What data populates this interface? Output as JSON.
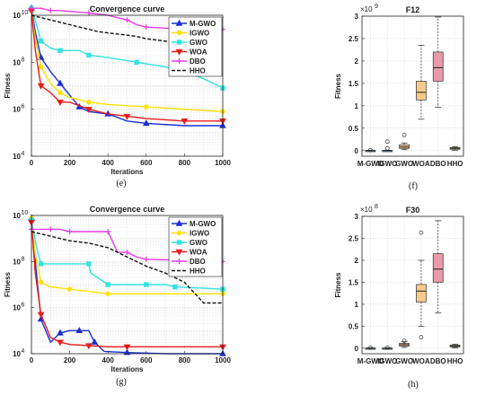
{
  "chart_data": [
    {
      "type": "line",
      "title": "Convergence curve",
      "xlabel": "Iterations",
      "ylabel": "Fitness",
      "xlim": [
        0,
        1000
      ],
      "ylim_exp": [
        4,
        10
      ],
      "ylabel_base": "10",
      "yscale": "log",
      "grid": "on",
      "legend_placement": "top-right",
      "x_ticks": [
        "0",
        "200",
        "400",
        "600",
        "800",
        "1000"
      ],
      "y_tick_exponents": [
        "4",
        "6",
        "8",
        "10"
      ],
      "caption": "(e)",
      "series": [
        {
          "name": "M-GWO",
          "color": "#1a2fd6",
          "marker": "triangle",
          "points": [
            [
              0,
              10.3
            ],
            [
              20,
              9.3
            ],
            [
              50,
              8.2
            ],
            [
              100,
              7.6
            ],
            [
              150,
              7.1
            ],
            [
              200,
              6.6
            ],
            [
              250,
              6.1
            ],
            [
              300,
              5.9
            ],
            [
              400,
              5.8
            ],
            [
              500,
              5.5
            ],
            [
              600,
              5.4
            ],
            [
              800,
              5.3
            ],
            [
              1000,
              5.3
            ]
          ]
        },
        {
          "name": "IGWO",
          "color": "#ffe000",
          "marker": "circle",
          "points": [
            [
              0,
              10.2
            ],
            [
              20,
              9.0
            ],
            [
              50,
              7.8
            ],
            [
              100,
              7.1
            ],
            [
              150,
              6.7
            ],
            [
              200,
              6.5
            ],
            [
              300,
              6.3
            ],
            [
              400,
              6.2
            ],
            [
              600,
              6.1
            ],
            [
              800,
              6.0
            ],
            [
              1000,
              5.9
            ]
          ]
        },
        {
          "name": "GWO",
          "color": "#33e3e3",
          "marker": "square",
          "points": [
            [
              0,
              10.3
            ],
            [
              30,
              9.5
            ],
            [
              50,
              8.9
            ],
            [
              100,
              8.6
            ],
            [
              150,
              8.5
            ],
            [
              250,
              8.5
            ],
            [
              300,
              8.3
            ],
            [
              400,
              8.2
            ],
            [
              550,
              8.0
            ],
            [
              700,
              7.8
            ],
            [
              800,
              7.6
            ],
            [
              900,
              7.3
            ],
            [
              1000,
              6.9
            ]
          ]
        },
        {
          "name": "WOA",
          "color": "#e81c1c",
          "marker": "triangle-down",
          "points": [
            [
              0,
              10.2
            ],
            [
              20,
              8.5
            ],
            [
              50,
              7.0
            ],
            [
              100,
              6.7
            ],
            [
              150,
              6.3
            ],
            [
              200,
              6.3
            ],
            [
              300,
              6.0
            ],
            [
              400,
              5.8
            ],
            [
              500,
              5.7
            ],
            [
              600,
              5.6
            ],
            [
              800,
              5.5
            ],
            [
              1000,
              5.5
            ]
          ]
        },
        {
          "name": "DBO",
          "color": "#e53be5",
          "marker": "plus",
          "points": [
            [
              0,
              10.3
            ],
            [
              50,
              10.3
            ],
            [
              100,
              10.2
            ],
            [
              150,
              10.2
            ],
            [
              300,
              10.1
            ],
            [
              400,
              10.0
            ],
            [
              500,
              9.8
            ],
            [
              550,
              9.6
            ],
            [
              600,
              9.5
            ],
            [
              800,
              9.4
            ],
            [
              900,
              9.4
            ],
            [
              1000,
              9.4
            ]
          ]
        },
        {
          "name": "HHO",
          "color": "#111111",
          "marker": "none",
          "dashed": true,
          "points": [
            [
              0,
              10.0
            ],
            [
              100,
              9.8
            ],
            [
              200,
              9.6
            ],
            [
              300,
              9.4
            ],
            [
              350,
              9.3
            ],
            [
              450,
              9.2
            ],
            [
              500,
              9.15
            ],
            [
              550,
              9.1
            ],
            [
              600,
              9.0
            ],
            [
              700,
              8.9
            ],
            [
              800,
              8.8
            ],
            [
              900,
              8.75
            ],
            [
              1000,
              8.7
            ]
          ]
        }
      ]
    },
    {
      "type": "box",
      "title": "F12",
      "ylabel": "Fitness",
      "exponent_label": "×10",
      "exponent": "9",
      "ylim": [
        0,
        3
      ],
      "y_ticks": [
        "0",
        "0.5",
        "1",
        "1.5",
        "2",
        "2.5",
        "3"
      ],
      "caption": "(f)",
      "categories": [
        "M-GWO",
        "IGWO",
        "GWO",
        "WOA",
        "DBO",
        "HHO"
      ],
      "boxes": [
        {
          "min": 0,
          "q1": 0,
          "median": 0,
          "q3": 0.005,
          "max": 0.01,
          "outliers": [
            0.01
          ],
          "color": "#7fb3d9"
        },
        {
          "min": 0,
          "q1": 0,
          "median": 0,
          "q3": 0.005,
          "max": 0.01,
          "outliers": [
            0.05,
            0.2
          ],
          "color": "#7fb3d9"
        },
        {
          "min": 0.02,
          "q1": 0.05,
          "median": 0.08,
          "q3": 0.13,
          "max": 0.17,
          "outliers": [
            0.35
          ],
          "color": "#f2b98a"
        },
        {
          "min": 0.7,
          "q1": 1.13,
          "median": 1.3,
          "q3": 1.55,
          "max": 2.35,
          "outliers": [],
          "color": "#f6c98c"
        },
        {
          "min": 0.97,
          "q1": 1.55,
          "median": 1.85,
          "q3": 2.2,
          "max": 2.98,
          "outliers": [],
          "color": "#e99aa8"
        },
        {
          "min": 0.01,
          "q1": 0.03,
          "median": 0.05,
          "q3": 0.07,
          "max": 0.09,
          "outliers": [],
          "color": "#e8d98a"
        }
      ]
    },
    {
      "type": "line",
      "title": "Convergence curve",
      "xlabel": "Iterations",
      "ylabel": "Fitness",
      "xlim": [
        0,
        1000
      ],
      "ylim_exp": [
        4,
        10
      ],
      "ylabel_base": "10",
      "yscale": "log",
      "grid": "on",
      "legend_placement": "top-right",
      "x_ticks": [
        "0",
        "200",
        "400",
        "600",
        "800",
        "1000"
      ],
      "y_tick_exponents": [
        "4",
        "6",
        "8",
        "10"
      ],
      "caption": "(g)",
      "series": [
        {
          "name": "M-GWO",
          "color": "#1a2fd6",
          "marker": "triangle",
          "points": [
            [
              0,
              9.9
            ],
            [
              20,
              8.0
            ],
            [
              50,
              5.5
            ],
            [
              100,
              4.5
            ],
            [
              150,
              4.9
            ],
            [
              200,
              5.0
            ],
            [
              250,
              5.0
            ],
            [
              300,
              5.0
            ],
            [
              330,
              4.5
            ],
            [
              380,
              4.1
            ],
            [
              500,
              4.05
            ],
            [
              700,
              4.0
            ],
            [
              1000,
              4.0
            ]
          ]
        },
        {
          "name": "IGWO",
          "color": "#ffe000",
          "marker": "circle",
          "points": [
            [
              0,
              9.9
            ],
            [
              20,
              8.3
            ],
            [
              50,
              7.1
            ],
            [
              100,
              6.9
            ],
            [
              200,
              6.8
            ],
            [
              300,
              6.7
            ],
            [
              400,
              6.6
            ],
            [
              600,
              6.6
            ],
            [
              1000,
              6.6
            ]
          ]
        },
        {
          "name": "GWO",
          "color": "#33e3e3",
          "marker": "square",
          "points": [
            [
              0,
              9.8
            ],
            [
              30,
              8.5
            ],
            [
              50,
              7.9
            ],
            [
              100,
              7.9
            ],
            [
              300,
              7.9
            ],
            [
              310,
              7.5
            ],
            [
              400,
              7.0
            ],
            [
              500,
              7.0
            ],
            [
              600,
              7.0
            ],
            [
              700,
              7.0
            ],
            [
              750,
              6.9
            ],
            [
              1000,
              6.8
            ]
          ]
        },
        {
          "name": "WOA",
          "color": "#e81c1c",
          "marker": "triangle-down",
          "points": [
            [
              0,
              9.7
            ],
            [
              20,
              7.5
            ],
            [
              50,
              5.7
            ],
            [
              100,
              4.7
            ],
            [
              150,
              4.5
            ],
            [
              200,
              4.4
            ],
            [
              300,
              4.35
            ],
            [
              400,
              4.3
            ],
            [
              500,
              4.3
            ],
            [
              700,
              4.3
            ],
            [
              1000,
              4.3
            ]
          ]
        },
        {
          "name": "DBO",
          "color": "#e53be5",
          "marker": "plus",
          "points": [
            [
              0,
              9.4
            ],
            [
              50,
              9.4
            ],
            [
              100,
              9.4
            ],
            [
              150,
              9.4
            ],
            [
              200,
              9.3
            ],
            [
              300,
              9.3
            ],
            [
              400,
              9.3
            ],
            [
              450,
              8.4
            ],
            [
              500,
              8.4
            ],
            [
              550,
              8.2
            ],
            [
              600,
              8.1
            ],
            [
              800,
              8.05
            ],
            [
              1000,
              8.0
            ]
          ]
        },
        {
          "name": "HHO",
          "color": "#111111",
          "marker": "none",
          "dashed": true,
          "points": [
            [
              0,
              9.3
            ],
            [
              100,
              9.1
            ],
            [
              200,
              8.9
            ],
            [
              300,
              8.8
            ],
            [
              400,
              8.6
            ],
            [
              500,
              8.2
            ],
            [
              600,
              7.8
            ],
            [
              700,
              7.5
            ],
            [
              800,
              7.1
            ],
            [
              900,
              6.2
            ],
            [
              1000,
              6.2
            ]
          ]
        }
      ]
    },
    {
      "type": "box",
      "title": "F30",
      "ylabel": "Fitness",
      "exponent_label": "×10",
      "exponent": "8",
      "ylim": [
        0,
        3
      ],
      "y_ticks": [
        "0",
        "0.5",
        "1",
        "1.5",
        "2",
        "2.5",
        "3"
      ],
      "caption": "(h)",
      "categories": [
        "M-GWO",
        "IGWO",
        "GWO",
        "WOA",
        "DBO",
        "HHO"
      ],
      "boxes": [
        {
          "min": 0,
          "q1": 0,
          "median": 0,
          "q3": 0.005,
          "max": 0.01,
          "outliers": [
            0.01
          ],
          "color": "#7fb3d9"
        },
        {
          "min": 0,
          "q1": 0,
          "median": 0,
          "q3": 0.005,
          "max": 0.01,
          "outliers": [
            0.01
          ],
          "color": "#7fb3d9"
        },
        {
          "min": 0.02,
          "q1": 0.05,
          "median": 0.08,
          "q3": 0.11,
          "max": 0.15,
          "outliers": [
            0.17
          ],
          "color": "#f2b98a"
        },
        {
          "min": 0.5,
          "q1": 1.05,
          "median": 1.3,
          "q3": 1.45,
          "max": 2.0,
          "outliers": [
            2.63,
            0.25
          ],
          "color": "#f6c98c"
        },
        {
          "min": 0.8,
          "q1": 1.5,
          "median": 1.8,
          "q3": 2.15,
          "max": 2.9,
          "outliers": [],
          "color": "#e99aa8"
        },
        {
          "min": 0.01,
          "q1": 0.03,
          "median": 0.05,
          "q3": 0.07,
          "max": 0.09,
          "outliers": [],
          "color": "#e8d98a"
        }
      ]
    }
  ]
}
